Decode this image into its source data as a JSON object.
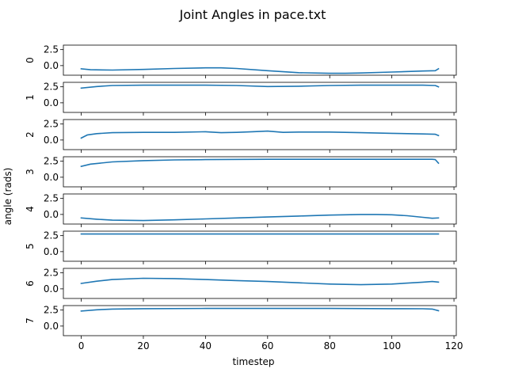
{
  "chart_data": {
    "type": "line",
    "title": "Joint Angles in pace.txt",
    "xlabel": "timestep",
    "ylabel": "angle (rads)",
    "xlim": [
      -5.75,
      120.75
    ],
    "x_ticks": [
      0,
      20,
      40,
      60,
      80,
      100,
      120
    ],
    "ylim": [
      -1.5,
      3.2
    ],
    "y_ticks": [
      0.0,
      2.5
    ],
    "y_tick_labels": [
      "0.0",
      "2.5"
    ],
    "grid": false,
    "line_color": "#1f77b4",
    "panels": [
      {
        "label": "0",
        "x": [
          0,
          3,
          10,
          20,
          30,
          40,
          45,
          50,
          60,
          70,
          80,
          85,
          90,
          100,
          110,
          114,
          115
        ],
        "y": [
          -0.5,
          -0.65,
          -0.7,
          -0.6,
          -0.45,
          -0.35,
          -0.35,
          -0.45,
          -0.8,
          -1.1,
          -1.2,
          -1.2,
          -1.15,
          -1.0,
          -0.85,
          -0.8,
          -0.5
        ]
      },
      {
        "label": "1",
        "x": [
          0,
          5,
          10,
          20,
          30,
          40,
          50,
          60,
          70,
          80,
          90,
          100,
          110,
          114,
          115
        ],
        "y": [
          2.3,
          2.55,
          2.7,
          2.75,
          2.75,
          2.75,
          2.7,
          2.55,
          2.6,
          2.7,
          2.75,
          2.75,
          2.75,
          2.7,
          2.5
        ]
      },
      {
        "label": "2",
        "x": [
          0,
          2,
          5,
          10,
          20,
          30,
          40,
          45,
          50,
          55,
          60,
          65,
          70,
          80,
          90,
          100,
          110,
          114,
          115
        ],
        "y": [
          0.3,
          0.8,
          1.0,
          1.15,
          1.2,
          1.2,
          1.3,
          1.15,
          1.2,
          1.3,
          1.4,
          1.2,
          1.25,
          1.25,
          1.15,
          1.05,
          0.95,
          0.9,
          0.7
        ]
      },
      {
        "label": "3",
        "x": [
          0,
          3,
          10,
          20,
          30,
          40,
          60,
          80,
          100,
          113,
          114,
          115
        ],
        "y": [
          1.7,
          2.05,
          2.4,
          2.6,
          2.7,
          2.75,
          2.8,
          2.8,
          2.8,
          2.8,
          2.75,
          2.2
        ]
      },
      {
        "label": "4",
        "x": [
          0,
          5,
          10,
          20,
          30,
          40,
          50,
          60,
          70,
          80,
          90,
          95,
          100,
          105,
          110,
          113,
          115
        ],
        "y": [
          -0.55,
          -0.75,
          -0.9,
          -0.95,
          -0.85,
          -0.7,
          -0.55,
          -0.4,
          -0.25,
          -0.1,
          0.0,
          0.0,
          -0.05,
          -0.2,
          -0.45,
          -0.6,
          -0.55
        ]
      },
      {
        "label": "5",
        "x": [
          0,
          20,
          40,
          60,
          80,
          100,
          115
        ],
        "y": [
          2.75,
          2.75,
          2.75,
          2.75,
          2.75,
          2.75,
          2.75
        ]
      },
      {
        "label": "6",
        "x": [
          0,
          5,
          10,
          20,
          30,
          40,
          50,
          60,
          70,
          80,
          90,
          100,
          110,
          113,
          115
        ],
        "y": [
          0.85,
          1.2,
          1.45,
          1.65,
          1.6,
          1.45,
          1.3,
          1.15,
          0.95,
          0.75,
          0.65,
          0.75,
          1.05,
          1.15,
          1.05
        ]
      },
      {
        "label": "7",
        "x": [
          0,
          5,
          10,
          20,
          40,
          60,
          80,
          100,
          110,
          113,
          115
        ],
        "y": [
          2.35,
          2.55,
          2.65,
          2.72,
          2.75,
          2.75,
          2.75,
          2.72,
          2.7,
          2.65,
          2.4
        ]
      }
    ]
  }
}
